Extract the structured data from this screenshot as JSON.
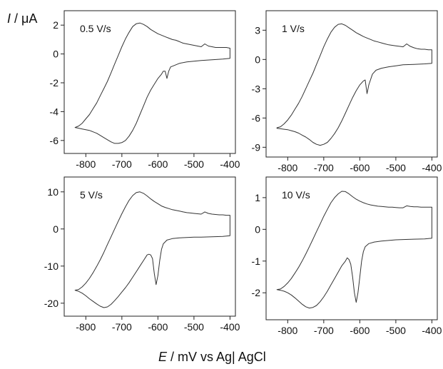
{
  "y_axis_title": {
    "symbol": "I",
    "unit": "μA"
  },
  "x_axis_title": {
    "symbol": "E",
    "unit": "mV vs Ag| AgCl"
  },
  "chart_data": [
    {
      "type": "line",
      "label": "0.5  V/s",
      "xlim": [
        -860,
        -385
      ],
      "ylim": [
        -6.9,
        3.0
      ],
      "x_ticks": [
        -800,
        -700,
        -600,
        -500,
        -400
      ],
      "y_ticks": [
        2,
        0,
        -2,
        -4,
        -6
      ],
      "series": [
        {
          "x": [
            -830,
            -820,
            -810,
            -800,
            -790,
            -780,
            -770,
            -760,
            -750,
            -740,
            -730,
            -720,
            -710,
            -700,
            -690,
            -680,
            -670,
            -660,
            -650,
            -640,
            -630,
            -620,
            -610,
            -600,
            -590,
            -580,
            -570,
            -560,
            -550,
            -540,
            -530,
            -520,
            -510,
            -500,
            -490,
            -480,
            -470,
            -460,
            -450,
            -440,
            -430,
            -420,
            -410,
            -400,
            -400,
            -420,
            -450,
            -480,
            -500,
            -520,
            -540,
            -555,
            -565,
            -570,
            -575,
            -580,
            -585,
            -590,
            -600,
            -610,
            -620,
            -630,
            -640,
            -650,
            -660,
            -670,
            -680,
            -690,
            -700,
            -710,
            -720,
            -730,
            -740,
            -750,
            -760,
            -770,
            -780,
            -790,
            -800,
            -810,
            -820,
            -830
          ],
          "y": [
            -5.1,
            -5.0,
            -4.8,
            -4.5,
            -4.2,
            -3.8,
            -3.4,
            -2.9,
            -2.4,
            -1.9,
            -1.3,
            -0.7,
            -0.1,
            0.5,
            1.05,
            1.5,
            1.9,
            2.1,
            2.15,
            2.05,
            1.9,
            1.7,
            1.55,
            1.4,
            1.3,
            1.2,
            1.1,
            1.0,
            0.95,
            0.85,
            0.75,
            0.7,
            0.65,
            0.6,
            0.55,
            0.5,
            0.7,
            0.55,
            0.5,
            0.45,
            0.45,
            0.45,
            0.45,
            0.4,
            -0.3,
            -0.35,
            -0.4,
            -0.45,
            -0.5,
            -0.55,
            -0.65,
            -0.8,
            -0.9,
            -1.2,
            -1.7,
            -1.2,
            -1.2,
            -1.4,
            -1.7,
            -2.1,
            -2.5,
            -3.0,
            -3.6,
            -4.2,
            -4.8,
            -5.3,
            -5.7,
            -6.0,
            -6.15,
            -6.2,
            -6.2,
            -6.1,
            -5.95,
            -5.8,
            -5.65,
            -5.5,
            -5.4,
            -5.3,
            -5.25,
            -5.2,
            -5.15,
            -5.1
          ]
        }
      ]
    },
    {
      "type": "line",
      "label": "1 V/s",
      "xlim": [
        -860,
        -385
      ],
      "ylim": [
        -10.0,
        5.0
      ],
      "x_ticks": [
        -800,
        -700,
        -600,
        -500,
        -400
      ],
      "y_ticks": [
        3,
        0,
        -3,
        -6,
        -9
      ],
      "series": [
        {
          "x": [
            -830,
            -820,
            -810,
            -800,
            -790,
            -780,
            -770,
            -760,
            -750,
            -740,
            -730,
            -720,
            -710,
            -700,
            -690,
            -680,
            -670,
            -660,
            -650,
            -640,
            -630,
            -620,
            -610,
            -600,
            -590,
            -580,
            -570,
            -560,
            -550,
            -540,
            -530,
            -520,
            -510,
            -500,
            -490,
            -480,
            -470,
            -460,
            -450,
            -440,
            -430,
            -420,
            -410,
            -400,
            -400,
            -420,
            -450,
            -480,
            -500,
            -520,
            -540,
            -555,
            -565,
            -575,
            -580,
            -585,
            -590,
            -600,
            -610,
            -620,
            -630,
            -640,
            -650,
            -660,
            -670,
            -680,
            -690,
            -700,
            -710,
            -720,
            -730,
            -740,
            -750,
            -760,
            -770,
            -780,
            -790,
            -800,
            -810,
            -820,
            -830
          ],
          "y": [
            -7.0,
            -6.9,
            -6.6,
            -6.2,
            -5.7,
            -5.1,
            -4.5,
            -3.8,
            -3.0,
            -2.2,
            -1.4,
            -0.5,
            0.4,
            1.3,
            2.1,
            2.8,
            3.3,
            3.6,
            3.65,
            3.5,
            3.25,
            3.0,
            2.75,
            2.55,
            2.35,
            2.2,
            2.05,
            1.9,
            1.8,
            1.7,
            1.6,
            1.5,
            1.45,
            1.4,
            1.35,
            1.3,
            1.6,
            1.35,
            1.2,
            1.1,
            1.05,
            1.05,
            1.0,
            1.0,
            -0.4,
            -0.45,
            -0.5,
            -0.55,
            -0.65,
            -0.75,
            -0.9,
            -1.1,
            -1.5,
            -2.6,
            -3.5,
            -2.1,
            -2.2,
            -2.6,
            -3.2,
            -3.9,
            -4.7,
            -5.5,
            -6.3,
            -7.0,
            -7.6,
            -8.1,
            -8.5,
            -8.7,
            -8.8,
            -8.7,
            -8.5,
            -8.2,
            -7.95,
            -7.75,
            -7.55,
            -7.4,
            -7.3,
            -7.2,
            -7.15,
            -7.1,
            -7.05
          ]
        }
      ]
    },
    {
      "type": "line",
      "label": "5 V/s",
      "xlim": [
        -860,
        -385
      ],
      "ylim": [
        -23.5,
        14.0
      ],
      "x_ticks": [
        -800,
        -700,
        -600,
        -500,
        -400
      ],
      "y_ticks": [
        10,
        0,
        -10,
        -20
      ],
      "series": [
        {
          "x": [
            -830,
            -820,
            -810,
            -800,
            -790,
            -780,
            -770,
            -760,
            -750,
            -740,
            -730,
            -720,
            -710,
            -700,
            -690,
            -680,
            -670,
            -660,
            -650,
            -640,
            -630,
            -620,
            -610,
            -600,
            -590,
            -580,
            -570,
            -560,
            -550,
            -540,
            -530,
            -520,
            -510,
            -500,
            -490,
            -480,
            -470,
            -460,
            -450,
            -440,
            -430,
            -420,
            -410,
            -400,
            -400,
            -420,
            -450,
            -480,
            -500,
            -520,
            -540,
            -560,
            -575,
            -585,
            -590,
            -595,
            -600,
            -605,
            -610,
            -615,
            -620,
            -625,
            -630,
            -640,
            -650,
            -660,
            -670,
            -680,
            -690,
            -700,
            -710,
            -720,
            -730,
            -740,
            -750,
            -760,
            -770,
            -780,
            -790,
            -800,
            -810,
            -820,
            -830
          ],
          "y": [
            -16.5,
            -16.3,
            -15.6,
            -14.6,
            -13.3,
            -11.8,
            -10.1,
            -8.3,
            -6.3,
            -4.2,
            -2.1,
            0.0,
            2.1,
            4.1,
            6.0,
            7.7,
            9.0,
            9.8,
            10.0,
            9.6,
            8.9,
            8.1,
            7.4,
            6.8,
            6.2,
            5.8,
            5.5,
            5.2,
            5.0,
            4.8,
            4.6,
            4.4,
            4.3,
            4.2,
            4.1,
            4.0,
            4.6,
            4.2,
            4.0,
            3.9,
            3.8,
            3.8,
            3.7,
            3.7,
            -1.8,
            -2.0,
            -2.1,
            -2.2,
            -2.2,
            -2.3,
            -2.4,
            -2.6,
            -3.0,
            -4.0,
            -5.5,
            -8.5,
            -12.5,
            -15.0,
            -12.0,
            -8.0,
            -7.0,
            -6.8,
            -7.0,
            -8.5,
            -10.0,
            -11.5,
            -13.0,
            -14.5,
            -15.8,
            -17.0,
            -18.2,
            -19.3,
            -20.3,
            -21.0,
            -21.2,
            -20.8,
            -20.2,
            -19.5,
            -18.8,
            -18.0,
            -17.3,
            -16.8,
            -16.5
          ]
        }
      ]
    },
    {
      "type": "line",
      "label": "10 V/s",
      "xlim": [
        -860,
        -385
      ],
      "ylim": [
        -2.85,
        1.65
      ],
      "x_ticks": [
        -800,
        -700,
        -600,
        -500,
        -400
      ],
      "y_ticks": [
        1,
        0,
        -1,
        -2
      ],
      "series": [
        {
          "x": [
            -830,
            -820,
            -810,
            -800,
            -790,
            -780,
            -770,
            -760,
            -750,
            -740,
            -730,
            -720,
            -710,
            -700,
            -690,
            -680,
            -670,
            -660,
            -650,
            -640,
            -630,
            -620,
            -610,
            -600,
            -590,
            -580,
            -570,
            -560,
            -550,
            -540,
            -530,
            -520,
            -510,
            -500,
            -490,
            -480,
            -470,
            -460,
            -450,
            -440,
            -430,
            -420,
            -410,
            -400,
            -400,
            -420,
            -450,
            -480,
            -500,
            -520,
            -540,
            -560,
            -575,
            -585,
            -590,
            -595,
            -600,
            -605,
            -610,
            -615,
            -620,
            -625,
            -630,
            -635,
            -640,
            -650,
            -660,
            -670,
            -680,
            -690,
            -700,
            -710,
            -720,
            -730,
            -740,
            -750,
            -760,
            -770,
            -780,
            -790,
            -800,
            -810,
            -820,
            -830
          ],
          "y": [
            -1.9,
            -1.88,
            -1.8,
            -1.69,
            -1.55,
            -1.38,
            -1.2,
            -1.0,
            -0.78,
            -0.55,
            -0.31,
            -0.07,
            0.17,
            0.41,
            0.63,
            0.84,
            1.0,
            1.12,
            1.2,
            1.19,
            1.12,
            1.03,
            0.95,
            0.89,
            0.84,
            0.8,
            0.77,
            0.75,
            0.73,
            0.72,
            0.71,
            0.7,
            0.7,
            0.69,
            0.68,
            0.68,
            0.74,
            0.72,
            0.71,
            0.71,
            0.7,
            0.7,
            0.7,
            0.7,
            -0.28,
            -0.3,
            -0.31,
            -0.32,
            -0.33,
            -0.35,
            -0.37,
            -0.4,
            -0.45,
            -0.55,
            -0.7,
            -1.0,
            -1.5,
            -2.0,
            -2.3,
            -2.0,
            -1.5,
            -1.1,
            -0.95,
            -0.9,
            -1.0,
            -1.15,
            -1.35,
            -1.55,
            -1.75,
            -1.95,
            -2.13,
            -2.28,
            -2.4,
            -2.46,
            -2.48,
            -2.44,
            -2.36,
            -2.26,
            -2.16,
            -2.07,
            -2.0,
            -1.95,
            -1.92,
            -1.9
          ]
        }
      ]
    }
  ]
}
